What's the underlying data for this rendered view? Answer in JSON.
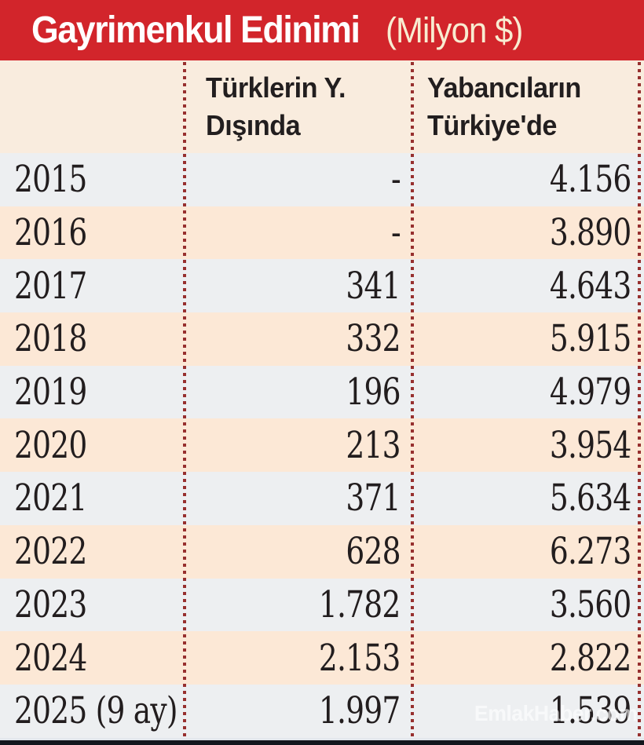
{
  "header": {
    "title": "Gayrimenkul Edinimi",
    "unit": "(Milyon $)",
    "bar_color": "#d2252b",
    "title_color": "#ffffff",
    "unit_color": "#f8ecd1"
  },
  "columns": {
    "abroad_line1": "Türklerin Y.",
    "abroad_line2": "Dışında",
    "turkiye_line1": "Yabancıların",
    "turkiye_line2": "Türkiye'de"
  },
  "rows": [
    {
      "year": "2015",
      "abroad": "-",
      "turkiye": "4.156"
    },
    {
      "year": "2016",
      "abroad": "-",
      "turkiye": "3.890"
    },
    {
      "year": "2017",
      "abroad": "341",
      "turkiye": "4.643"
    },
    {
      "year": "2018",
      "abroad": "332",
      "turkiye": "5.915"
    },
    {
      "year": "2019",
      "abroad": "196",
      "turkiye": "4.979"
    },
    {
      "year": "2020",
      "abroad": "213",
      "turkiye": "3.954"
    },
    {
      "year": "2021",
      "abroad": "371",
      "turkiye": "5.634"
    },
    {
      "year": "2022",
      "abroad": "628",
      "turkiye": "6.273"
    },
    {
      "year": "2023",
      "abroad": "1.782",
      "turkiye": "3.560"
    },
    {
      "year": "2024",
      "abroad": "2.153",
      "turkiye": "2.822"
    },
    {
      "year": "2025 (9 ay)",
      "abroad": "1.997",
      "turkiye": "1.539"
    }
  ],
  "chart_data": {
    "type": "table",
    "title": "Gayrimenkul Edinimi (Milyon $)",
    "categories": [
      "2015",
      "2016",
      "2017",
      "2018",
      "2019",
      "2020",
      "2021",
      "2022",
      "2023",
      "2024",
      "2025 (9 ay)"
    ],
    "series": [
      {
        "name": "Türklerin Y. Dışında",
        "values": [
          null,
          null,
          341,
          332,
          196,
          213,
          371,
          628,
          1782,
          2153,
          1997
        ]
      },
      {
        "name": "Yabancıların Türkiye'de",
        "values": [
          4156,
          3890,
          4643,
          5915,
          4979,
          3954,
          5634,
          6273,
          3560,
          2822,
          1539
        ]
      }
    ],
    "value_format": "thousands separated with period, Turkish style",
    "missing_value_marker": "-",
    "layout": {
      "row_stripe_colors": [
        "#edeff1",
        "#fce8d6"
      ],
      "divider_style": "red dotted vertical lines"
    }
  },
  "watermark": {
    "text": "EmlakHaber.com"
  },
  "colors": {
    "accent_red": "#d2252b",
    "divider_dot": "#97302f",
    "header_row_bg": "#f9ecde",
    "stripe_gray": "#edeff1",
    "stripe_peach": "#fce8d6",
    "text_dark": "#221e1f",
    "bottom_bar": "#13161d"
  }
}
